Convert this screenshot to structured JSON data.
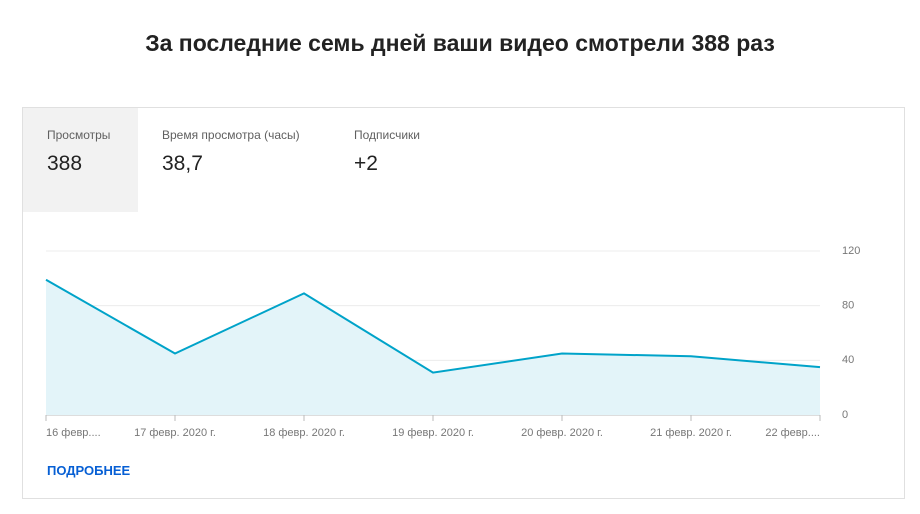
{
  "heading": "За последние семь дней ваши видео смотрели 388 раз",
  "metrics": [
    {
      "label": "Просмотры",
      "value": "388"
    },
    {
      "label": "Время просмотра (часы)",
      "value": "38,7"
    },
    {
      "label": "Подписчики",
      "value": "+2"
    }
  ],
  "chart_data": {
    "type": "area",
    "categories": [
      "16 февр....",
      "17 февр. 2020 г.",
      "18 февр. 2020 г.",
      "19 февр. 2020 г.",
      "20 февр. 2020 г.",
      "21 февр. 2020 г.",
      "22 февр...."
    ],
    "values": [
      99,
      45,
      89,
      31,
      45,
      43,
      35
    ],
    "color": "#00a3c9",
    "fill": "#e3f4f9",
    "ylim": [
      0,
      120
    ],
    "yticks": [
      0,
      40,
      80,
      120
    ],
    "grid": true
  },
  "link": "ПОДРОБНЕЕ"
}
